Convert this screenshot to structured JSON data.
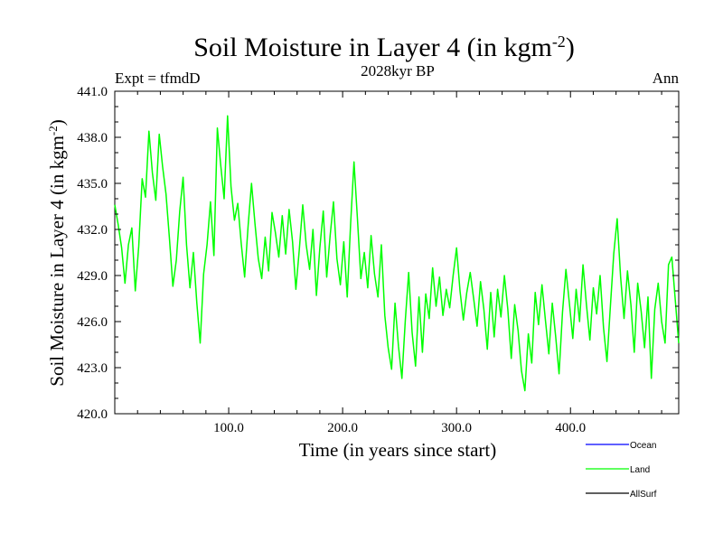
{
  "chart_data": {
    "type": "line",
    "title": "Soil Moisture in Layer 4 (in kgm",
    "title_sup": "-2",
    "title_close": ")",
    "subtitle": "2028kyr BP",
    "left_label": "Expt = tfmdD",
    "right_label": "Ann",
    "xlabel": "Time (in years since start)",
    "ylabel": "Soil Moisture in Layer 4 (in kgm",
    "ylabel_sup": "-2",
    "ylabel_close": ")",
    "xlim": [
      0,
      495
    ],
    "ylim": [
      420.0,
      441.0
    ],
    "x_ticks": [
      {
        "value": 100,
        "label": "100.0"
      },
      {
        "value": 200,
        "label": "200.0"
      },
      {
        "value": 300,
        "label": "300.0"
      },
      {
        "value": 400,
        "label": "400.0"
      }
    ],
    "y_ticks": [
      {
        "value": 420,
        "label": "420.0"
      },
      {
        "value": 423,
        "label": "423.0"
      },
      {
        "value": 426,
        "label": "426.0"
      },
      {
        "value": 429,
        "label": "429.0"
      },
      {
        "value": 432,
        "label": "432.0"
      },
      {
        "value": 435,
        "label": "435.0"
      },
      {
        "value": 438,
        "label": "438.0"
      },
      {
        "value": 441,
        "label": "441.0"
      }
    ],
    "legend": [
      {
        "name": "Ocean",
        "color": "#0000ff"
      },
      {
        "name": "Land",
        "color": "#00ff00"
      },
      {
        "name": "AllSurf",
        "color": "#000000"
      }
    ],
    "series": [
      {
        "name": "Land",
        "color": "#00ff00",
        "x": [
          0,
          3,
          6,
          9,
          12,
          15,
          18,
          21,
          24,
          27,
          30,
          33,
          36,
          39,
          42,
          45,
          48,
          51,
          54,
          57,
          60,
          63,
          66,
          69,
          72,
          75,
          78,
          81,
          84,
          87,
          90,
          93,
          96,
          99,
          102,
          105,
          108,
          111,
          114,
          117,
          120,
          123,
          126,
          129,
          132,
          135,
          138,
          141,
          144,
          147,
          150,
          153,
          156,
          159,
          162,
          165,
          168,
          171,
          174,
          177,
          180,
          183,
          186,
          189,
          192,
          195,
          198,
          201,
          204,
          207,
          210,
          213,
          216,
          219,
          222,
          225,
          228,
          231,
          234,
          237,
          240,
          243,
          246,
          249,
          252,
          255,
          258,
          261,
          264,
          267,
          270,
          273,
          276,
          279,
          282,
          285,
          288,
          291,
          294,
          297,
          300,
          303,
          306,
          309,
          312,
          315,
          318,
          321,
          324,
          327,
          330,
          333,
          336,
          339,
          342,
          345,
          348,
          351,
          354,
          357,
          360,
          363,
          366,
          369,
          372,
          375,
          378,
          381,
          384,
          387,
          390,
          393,
          396,
          399,
          402,
          405,
          408,
          411,
          414,
          417,
          420,
          423,
          426,
          429,
          432,
          435,
          438,
          441,
          444,
          447,
          450,
          453,
          456,
          459,
          462,
          465,
          468,
          471,
          474,
          477,
          480,
          483,
          486,
          489,
          492,
          495
        ],
        "values": [
          433.6,
          432.3,
          430.8,
          428.5,
          431.0,
          432.1,
          428.0,
          430.9,
          435.3,
          434.1,
          438.4,
          435.7,
          433.9,
          438.2,
          436.1,
          434.3,
          431.4,
          428.3,
          430.0,
          433.2,
          435.4,
          431.0,
          428.2,
          430.5,
          427.2,
          424.6,
          429.1,
          431.0,
          433.8,
          430.3,
          438.6,
          436.2,
          434.0,
          439.4,
          434.8,
          432.6,
          433.7,
          431.1,
          428.9,
          432.2,
          435.0,
          432.4,
          430.1,
          428.8,
          431.5,
          429.3,
          433.1,
          431.8,
          430.2,
          432.9,
          430.4,
          433.3,
          431.2,
          428.1,
          430.7,
          433.6,
          431.0,
          429.4,
          432.0,
          427.7,
          430.8,
          433.2,
          428.9,
          431.6,
          433.8,
          430.1,
          428.4,
          431.2,
          427.6,
          432.3,
          436.4,
          432.7,
          428.8,
          430.5,
          428.2,
          431.6,
          429.1,
          427.6,
          431.0,
          426.4,
          424.3,
          422.9,
          427.2,
          424.4,
          422.3,
          426.1,
          429.2,
          425.3,
          423.1,
          427.6,
          424.0,
          427.8,
          426.2,
          429.5,
          427.0,
          428.9,
          426.4,
          428.1,
          426.9,
          429.0,
          430.8,
          428.0,
          426.1,
          427.9,
          429.2,
          427.5,
          425.7,
          428.6,
          426.8,
          424.2,
          427.9,
          425.0,
          428.1,
          426.3,
          429.0,
          426.8,
          423.6,
          427.1,
          425.4,
          422.8,
          421.5,
          425.2,
          423.3,
          427.9,
          425.8,
          428.4,
          426.1,
          423.9,
          427.2,
          425.0,
          422.6,
          426.6,
          429.4,
          427.2,
          424.9,
          428.1,
          426.0,
          429.7,
          427.1,
          424.8,
          428.2,
          426.5,
          429.0,
          425.6,
          423.4,
          427.0,
          430.4,
          432.7,
          428.9,
          426.2,
          429.3,
          427.1,
          424.0,
          428.5,
          426.7,
          424.3,
          427.6,
          422.3,
          426.8,
          428.5,
          426.0,
          424.6,
          429.7,
          430.2,
          427.4,
          424.6
        ]
      }
    ]
  }
}
